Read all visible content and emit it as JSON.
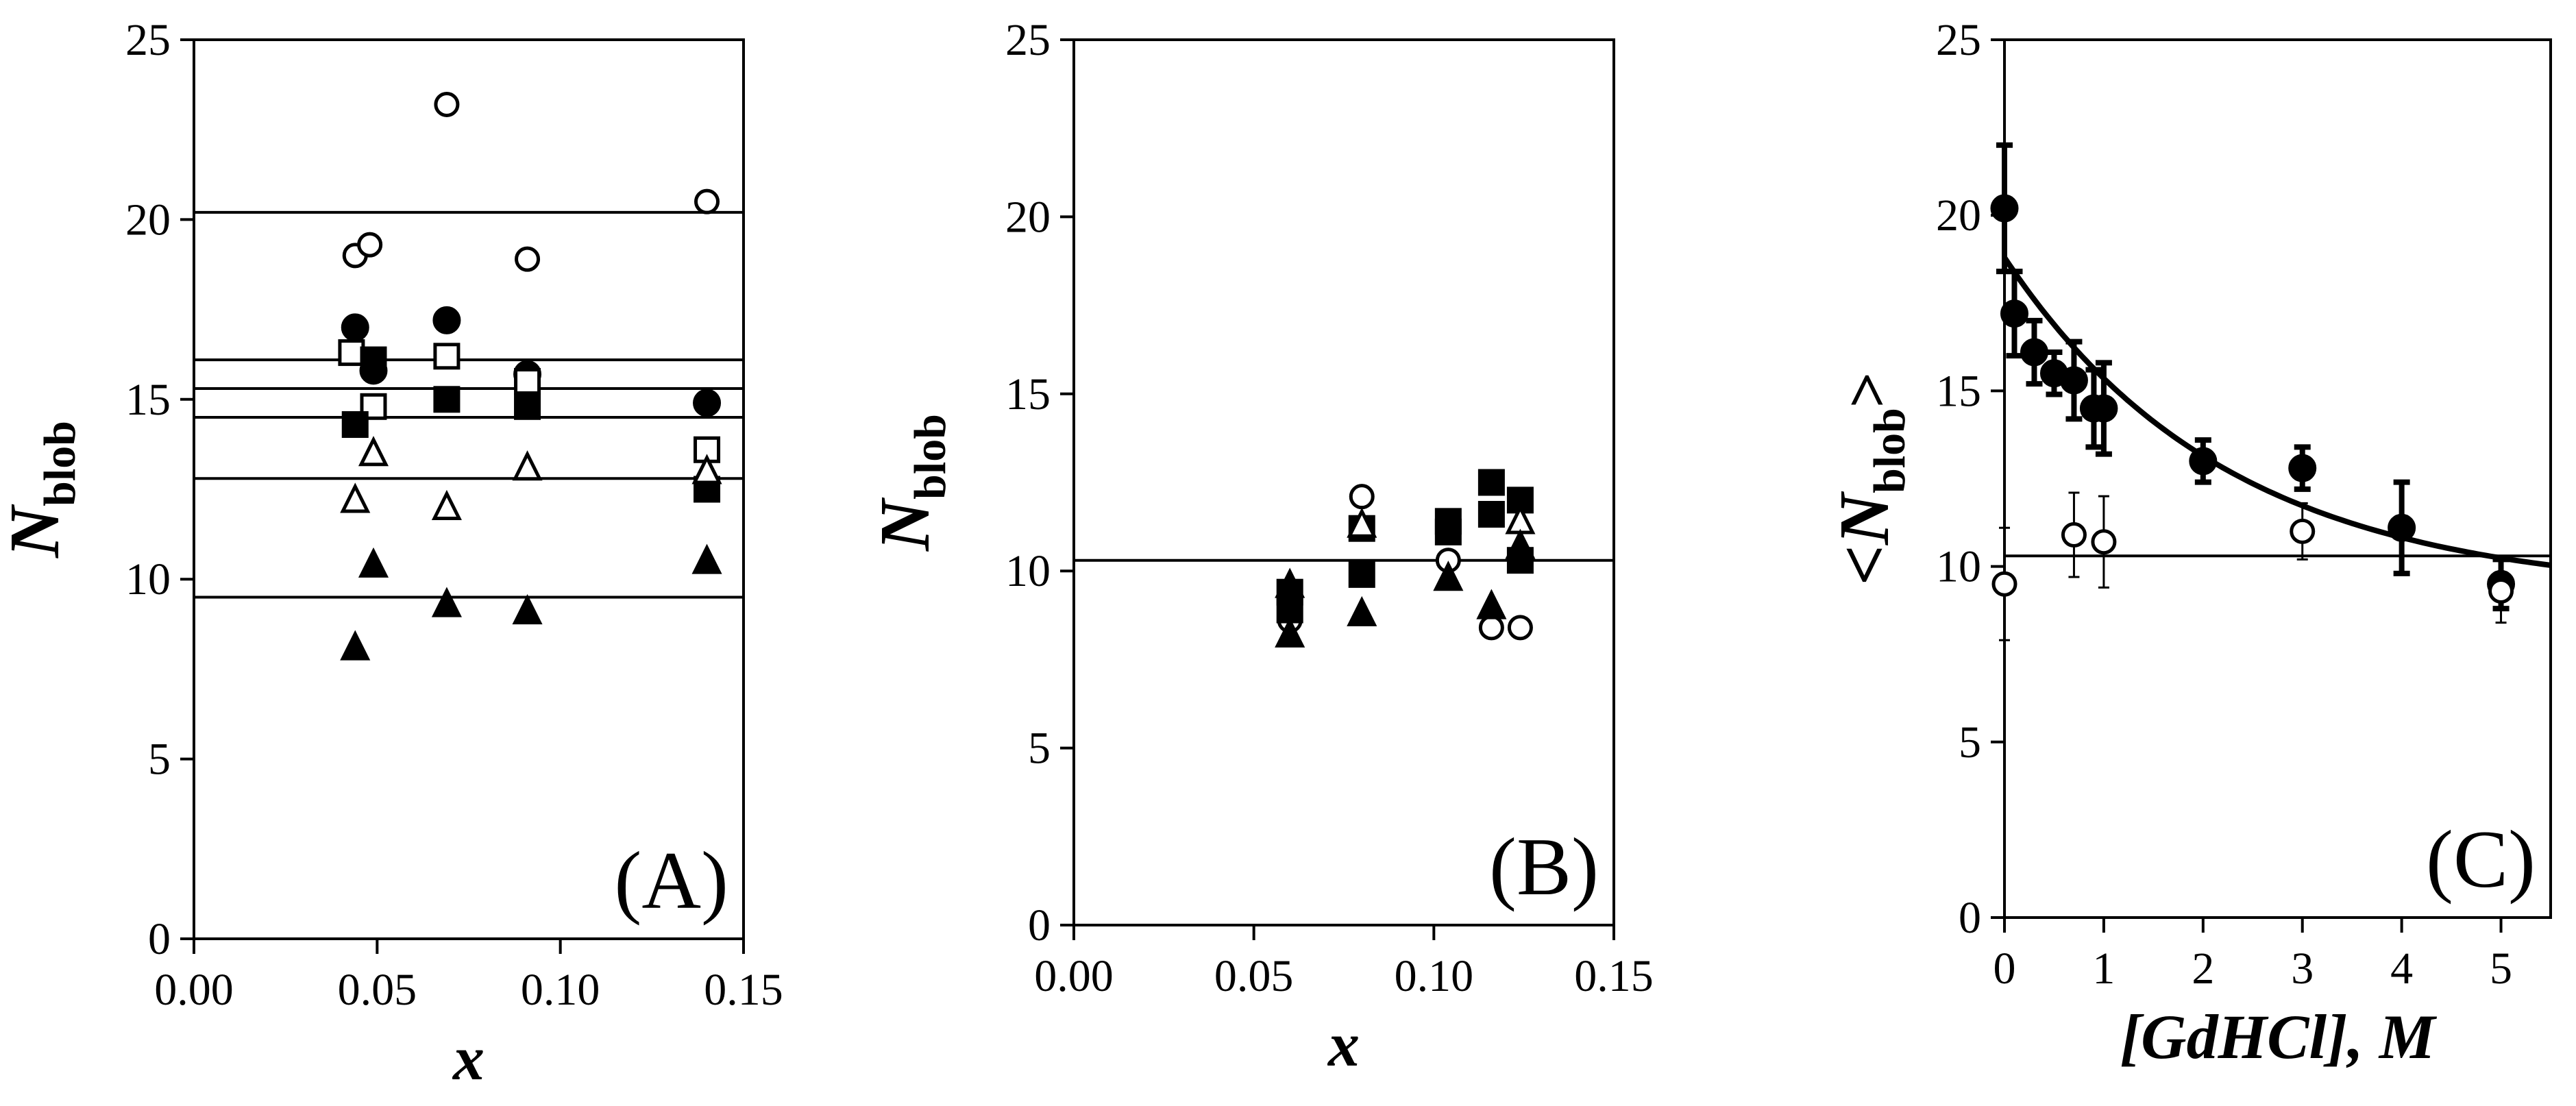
{
  "chart_data": [
    {
      "panel": "A",
      "type": "scatter",
      "panel_label": "(A)",
      "xlabel": "x",
      "ylabel": {
        "main": "N",
        "sub": "blob"
      },
      "xlim": [
        0,
        0.15
      ],
      "ylim": [
        0,
        25
      ],
      "xticks": [
        "0.00",
        "0.05",
        "0.10",
        "0.15"
      ],
      "yticks": [
        "0",
        "5",
        "10",
        "15",
        "20",
        "25"
      ],
      "hlines": [
        20.2,
        16.1,
        15.3,
        14.5,
        12.8,
        9.5
      ],
      "series": [
        {
          "marker": "open-circle",
          "points": [
            [
              0.044,
              19.0
            ],
            [
              0.048,
              19.3
            ],
            [
              0.069,
              23.2
            ],
            [
              0.091,
              18.9
            ],
            [
              0.14,
              20.5
            ]
          ]
        },
        {
          "marker": "filled-circle",
          "points": [
            [
              0.044,
              17.0
            ],
            [
              0.049,
              15.8
            ],
            [
              0.069,
              17.2
            ],
            [
              0.091,
              15.7
            ],
            [
              0.14,
              14.9
            ]
          ]
        },
        {
          "marker": "open-square",
          "points": [
            [
              0.043,
              16.3
            ],
            [
              0.049,
              14.8
            ],
            [
              0.069,
              16.2
            ],
            [
              0.091,
              15.5
            ],
            [
              0.14,
              13.6
            ]
          ]
        },
        {
          "marker": "filled-square",
          "points": [
            [
              0.044,
              14.3
            ],
            [
              0.049,
              16.1
            ],
            [
              0.069,
              15.0
            ],
            [
              0.091,
              14.8
            ],
            [
              0.14,
              12.5
            ]
          ]
        },
        {
          "marker": "open-triangle",
          "points": [
            [
              0.044,
              12.2
            ],
            [
              0.049,
              13.5
            ],
            [
              0.069,
              12.0
            ],
            [
              0.091,
              13.1
            ],
            [
              0.14,
              13.0
            ]
          ]
        },
        {
          "marker": "filled-triangle",
          "points": [
            [
              0.044,
              8.1
            ],
            [
              0.049,
              10.4
            ],
            [
              0.069,
              9.3
            ],
            [
              0.091,
              9.1
            ],
            [
              0.14,
              10.5
            ]
          ]
        }
      ]
    },
    {
      "panel": "B",
      "type": "scatter",
      "panel_label": "(B)",
      "xlabel": "x",
      "ylabel": {
        "main": "N",
        "sub": "blob"
      },
      "xlim": [
        0,
        0.15
      ],
      "ylim": [
        0,
        25
      ],
      "xticks": [
        "0.00",
        "0.05",
        "0.10",
        "0.15"
      ],
      "yticks": [
        "0",
        "5",
        "10",
        "15",
        "20",
        "25"
      ],
      "hlines": [
        10.3
      ],
      "series": [
        {
          "marker": "open-circle",
          "points": [
            [
              0.06,
              8.6
            ],
            [
              0.08,
              12.1
            ],
            [
              0.104,
              10.3
            ],
            [
              0.116,
              8.4
            ],
            [
              0.124,
              8.4
            ]
          ]
        },
        {
          "marker": "filled-square",
          "points": [
            [
              0.06,
              9.4
            ],
            [
              0.06,
              8.9
            ],
            [
              0.08,
              11.2
            ],
            [
              0.08,
              9.9
            ],
            [
              0.104,
              11.4
            ],
            [
              0.104,
              11.1
            ],
            [
              0.116,
              12.5
            ],
            [
              0.116,
              11.6
            ],
            [
              0.124,
              12.0
            ],
            [
              0.124,
              10.3
            ]
          ]
        },
        {
          "marker": "open-triangle",
          "points": [
            [
              0.08,
              11.3
            ],
            [
              0.124,
              11.4
            ]
          ]
        },
        {
          "marker": "filled-triangle",
          "points": [
            [
              0.06,
              9.6
            ],
            [
              0.06,
              8.2
            ],
            [
              0.08,
              8.8
            ],
            [
              0.104,
              9.8
            ],
            [
              0.116,
              9.0
            ],
            [
              0.124,
              10.7
            ]
          ]
        }
      ]
    },
    {
      "panel": "C",
      "type": "scatter",
      "panel_label": "(C)",
      "xlabel": "[GdHCl], M",
      "ylabel": {
        "main": "<N",
        "sub": "blob",
        "suffix": ">"
      },
      "xlim": [
        0,
        5.5
      ],
      "ylim": [
        0,
        25
      ],
      "xticks": [
        "0",
        "1",
        "2",
        "3",
        "4",
        "5"
      ],
      "yticks": [
        "0",
        "5",
        "10",
        "15",
        "20",
        "25"
      ],
      "hlines": [
        10.3
      ],
      "fit_curve": {
        "form": "y = a + b*exp(-x/c)",
        "a": 9.2,
        "b": 9.6,
        "c": 2.25
      },
      "series": [
        {
          "marker": "filled-circle",
          "points": [
            [
              0,
              20.2,
              1.8
            ],
            [
              0.1,
              17.2,
              1.2
            ],
            [
              0.3,
              16.1,
              0.9
            ],
            [
              0.5,
              15.5,
              0.6
            ],
            [
              0.7,
              15.3,
              1.1
            ],
            [
              0.9,
              14.5,
              1.1
            ],
            [
              1.0,
              14.5,
              1.3
            ],
            [
              2.0,
              13.0,
              0.6
            ],
            [
              3.0,
              12.8,
              0.6
            ],
            [
              4.0,
              11.1,
              1.3
            ],
            [
              5.0,
              9.5,
              0.7
            ]
          ]
        },
        {
          "marker": "open-circle",
          "points": [
            [
              0,
              9.5,
              1.6
            ],
            [
              0.7,
              10.9,
              1.2
            ],
            [
              1.0,
              10.7,
              1.3
            ],
            [
              3.0,
              11.0,
              0.8
            ],
            [
              5.0,
              9.3,
              0.9
            ]
          ]
        }
      ]
    }
  ]
}
